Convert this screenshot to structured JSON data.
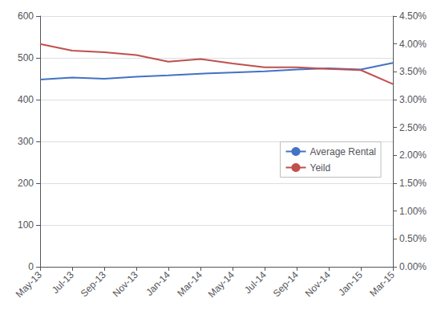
{
  "chart_data": {
    "type": "line",
    "categories": [
      "May-13",
      "Jul-13",
      "Sep-13",
      "Nov-13",
      "Jan-14",
      "Mar-14",
      "May-14",
      "Jul-14",
      "Sep-14",
      "Nov-14",
      "Jan-15",
      "Mar-15"
    ],
    "series": [
      {
        "name": "Average Rental",
        "color": "#4472C4",
        "values": [
          448,
          453,
          450,
          455,
          458,
          462,
          465,
          468,
          472,
          475,
          472,
          488
        ]
      },
      {
        "name": "Yeild",
        "color": "#C0504D",
        "axis": "y2",
        "values": [
          0.04,
          0.0388,
          0.0385,
          0.038,
          0.0368,
          0.0373,
          0.0365,
          0.0358,
          0.0358,
          0.0355,
          0.0353,
          0.0328
        ]
      }
    ],
    "ylim": [
      0,
      600
    ],
    "yticks": [
      0,
      100,
      200,
      300,
      400,
      500,
      600
    ],
    "y2lim": [
      0.0,
      0.045
    ],
    "y2ticks": [
      {
        "value": 0.0,
        "label": "0.00%"
      },
      {
        "value": 0.005,
        "label": "0.50%"
      },
      {
        "value": 0.01,
        "label": "1.00%"
      },
      {
        "value": 0.015,
        "label": "1.50%"
      },
      {
        "value": 0.02,
        "label": "2.00%"
      },
      {
        "value": 0.025,
        "label": "2.50%"
      },
      {
        "value": 0.03,
        "label": "3.00%"
      },
      {
        "value": 0.035,
        "label": "3.50%"
      },
      {
        "value": 0.04,
        "label": "4.00%"
      },
      {
        "value": 0.045,
        "label": "4.50%"
      }
    ],
    "grid": true,
    "legend": "right"
  }
}
